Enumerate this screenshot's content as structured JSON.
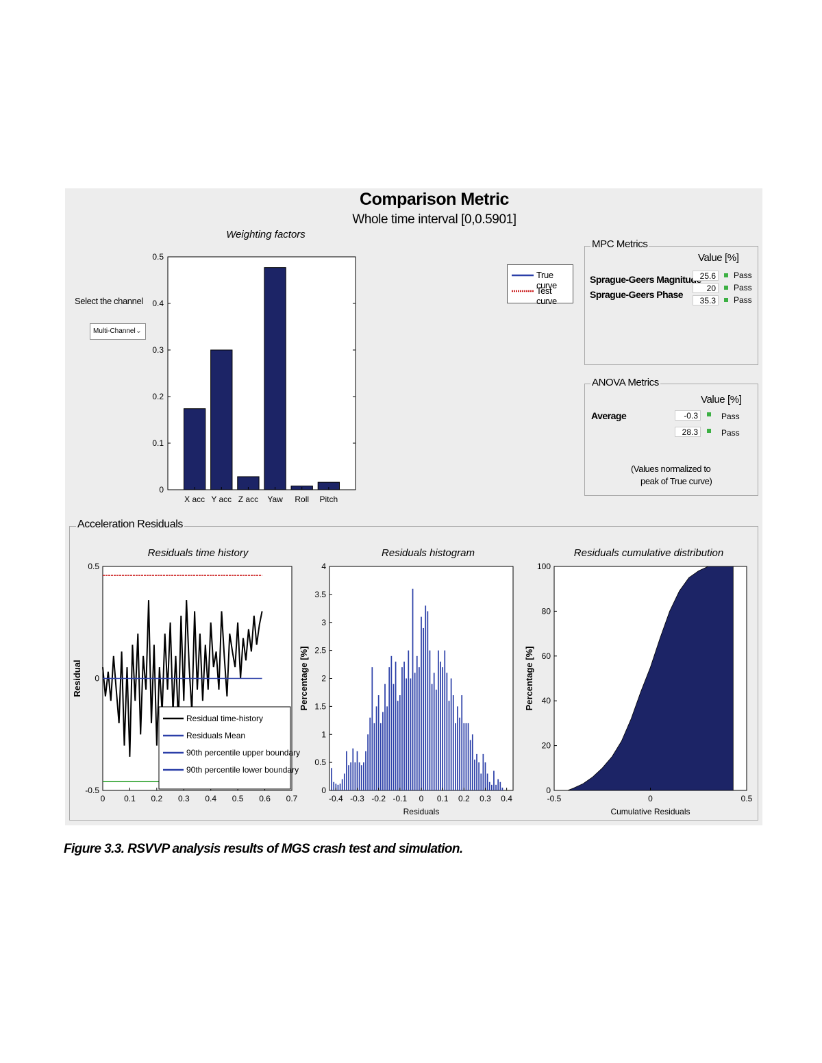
{
  "header": {
    "title": "Comparison Metric",
    "subtitle": "Whole time interval [0,0.5901]"
  },
  "channel": {
    "label": "Select the channel",
    "selected": "Multi-Channel"
  },
  "legend": {
    "true_curve": "True curve",
    "test_curve": "Test curve"
  },
  "mpc": {
    "title": "MPC Metrics",
    "value_header": "Value [%]",
    "rows": [
      {
        "label": "Sprague-Geers Magnitude",
        "value": "25.6",
        "status": "Pass"
      },
      {
        "label": "Sprague-Geers Phase",
        "value": "20",
        "status": "Pass"
      },
      {
        "label": "",
        "value": "35.3",
        "status": "Pass"
      }
    ]
  },
  "anova": {
    "title": "ANOVA Metrics",
    "value_header": "Value [%]",
    "rows": [
      {
        "label": "Average",
        "value": "-0.3",
        "status": "Pass"
      },
      {
        "label": "",
        "value": "28.3",
        "status": "Pass"
      }
    ],
    "note_line1": "(Values normalized to",
    "note_line2": "peak of True curve)"
  },
  "residuals_panel": {
    "title": "Acceleration Residuals"
  },
  "caption": "Figure 3.3.    RSVVP analysis results of MGS crash test and simulation.",
  "colors": {
    "bar": "#1c2466",
    "mean_line": "#2b3fa8",
    "test_curve": "#cc2222",
    "lower_boundary": "#2ca02c",
    "pass": "#3cb043"
  },
  "chart_data": [
    {
      "type": "bar",
      "title": "Weighting factors",
      "categories": [
        "X acc",
        "Y acc",
        "Z acc",
        "Yaw",
        "Roll",
        "Pitch"
      ],
      "values": [
        0.174,
        0.3,
        0.028,
        0.477,
        0.008,
        0.016
      ],
      "ylim": [
        0,
        0.5
      ],
      "yticks": [
        "0",
        "0.1",
        "0.2",
        "0.3",
        "0.4",
        "0.5"
      ],
      "grid": false
    },
    {
      "type": "line",
      "title": "Residuals time history",
      "ylabel": "Residual",
      "xlim": [
        0,
        0.7
      ],
      "ylim": [
        -0.5,
        0.5
      ],
      "xticks": [
        "0",
        "0.1",
        "0.2",
        "0.3",
        "0.4",
        "0.5",
        "0.6",
        "0.7"
      ],
      "yticks": [
        "-0.5",
        "0",
        "0.5"
      ],
      "legend": "bottom-right",
      "series": [
        {
          "name": "Residual time-history",
          "color": "#000000",
          "x": [
            0,
            0.01,
            0.02,
            0.03,
            0.04,
            0.05,
            0.06,
            0.07,
            0.08,
            0.09,
            0.1,
            0.11,
            0.12,
            0.13,
            0.14,
            0.15,
            0.16,
            0.17,
            0.18,
            0.19,
            0.2,
            0.21,
            0.22,
            0.23,
            0.24,
            0.25,
            0.26,
            0.27,
            0.28,
            0.29,
            0.3,
            0.31,
            0.32,
            0.33,
            0.34,
            0.35,
            0.36,
            0.37,
            0.38,
            0.39,
            0.4,
            0.41,
            0.42,
            0.43,
            0.44,
            0.45,
            0.46,
            0.47,
            0.48,
            0.49,
            0.5,
            0.51,
            0.52,
            0.53,
            0.54,
            0.55,
            0.56,
            0.57,
            0.58,
            0.59
          ],
          "y": [
            0.05,
            -0.08,
            0.03,
            -0.1,
            0.1,
            -0.05,
            -0.2,
            0.12,
            -0.3,
            0.05,
            -0.35,
            0.15,
            -0.1,
            0.2,
            -0.25,
            0.1,
            -0.05,
            0.35,
            -0.2,
            0.15,
            -0.3,
            0.05,
            -0.15,
            0.2,
            -0.05,
            0.25,
            -0.15,
            0.1,
            -0.2,
            0.28,
            -0.1,
            0.35,
            0.05,
            -0.15,
            0.3,
            -0.05,
            0.2,
            -0.1,
            0.15,
            -0.05,
            0.25,
            0.05,
            0.12,
            -0.05,
            0.3,
            0.1,
            -0.08,
            0.2,
            0.12,
            0.05,
            0.25,
            0.0,
            0.18,
            0.08,
            0.22,
            0.12,
            0.28,
            0.15,
            0.24,
            0.3
          ]
        },
        {
          "name": "Residuals Mean",
          "color": "#2b3fa8",
          "x": [
            0,
            0.59
          ],
          "y": [
            0,
            0
          ]
        },
        {
          "name": "90th percentile upper boundary",
          "color": "#cc2222",
          "x": [
            0,
            0.59
          ],
          "y": [
            0.46,
            0.46
          ]
        },
        {
          "name": "90th percentile lower boundary",
          "color": "#2ca02c",
          "x": [
            0,
            0.59
          ],
          "y": [
            -0.46,
            -0.46
          ]
        }
      ]
    },
    {
      "type": "bar",
      "title": "Residuals histogram",
      "xlabel": "Residuals",
      "ylabel": "Percentage [%]",
      "xlim": [
        -0.43,
        0.43
      ],
      "ylim": [
        0,
        4
      ],
      "xticks": [
        "-0.4",
        "-0.3",
        "-0.2",
        "-0.1",
        "0",
        "0.1",
        "0.2",
        "0.3",
        "0.4"
      ],
      "yticks": [
        "0",
        "0.5",
        "1",
        "1.5",
        "2",
        "2.5",
        "3",
        "3.5",
        "4"
      ],
      "bin_centers": [
        -0.42,
        -0.41,
        -0.4,
        -0.39,
        -0.38,
        -0.37,
        -0.36,
        -0.35,
        -0.34,
        -0.33,
        -0.32,
        -0.31,
        -0.3,
        -0.29,
        -0.28,
        -0.27,
        -0.26,
        -0.25,
        -0.24,
        -0.23,
        -0.22,
        -0.21,
        -0.2,
        -0.19,
        -0.18,
        -0.17,
        -0.16,
        -0.15,
        -0.14,
        -0.13,
        -0.12,
        -0.11,
        -0.1,
        -0.09,
        -0.08,
        -0.07,
        -0.06,
        -0.05,
        -0.04,
        -0.03,
        -0.02,
        -0.01,
        0.0,
        0.01,
        0.02,
        0.03,
        0.04,
        0.05,
        0.06,
        0.07,
        0.08,
        0.09,
        0.1,
        0.11,
        0.12,
        0.13,
        0.14,
        0.15,
        0.16,
        0.17,
        0.18,
        0.19,
        0.2,
        0.21,
        0.22,
        0.23,
        0.24,
        0.25,
        0.26,
        0.27,
        0.28,
        0.29,
        0.3,
        0.31,
        0.32,
        0.33,
        0.34,
        0.35,
        0.36,
        0.37,
        0.38
      ],
      "values": [
        0.4,
        0.15,
        0.12,
        0.1,
        0.12,
        0.2,
        0.3,
        0.7,
        0.45,
        0.5,
        0.75,
        0.5,
        0.7,
        0.5,
        0.45,
        0.5,
        0.7,
        1.0,
        1.3,
        2.2,
        1.2,
        1.5,
        1.7,
        1.2,
        1.4,
        1.9,
        1.5,
        2.2,
        2.4,
        1.9,
        2.3,
        1.6,
        1.7,
        2.2,
        2.3,
        2.0,
        2.5,
        2.0,
        3.6,
        2.1,
        2.4,
        2.2,
        3.1,
        2.9,
        3.3,
        3.2,
        2.5,
        1.9,
        2.1,
        1.8,
        2.5,
        2.3,
        2.2,
        2.5,
        2.1,
        1.6,
        2.0,
        1.7,
        1.2,
        1.5,
        1.3,
        1.7,
        1.2,
        1.2,
        1.2,
        0.9,
        1.0,
        0.55,
        0.65,
        0.5,
        0.3,
        0.65,
        0.5,
        0.3,
        0.15,
        0.1,
        0.35,
        0.1,
        0.2,
        0.15,
        0.05
      ]
    },
    {
      "type": "area",
      "title": "Residuals cumulative distribution",
      "xlabel": "Cumulative Residuals",
      "ylabel": "Percentage [%]",
      "xlim": [
        -0.5,
        0.5
      ],
      "ylim": [
        0,
        100
      ],
      "xticks": [
        "-0.5",
        "0",
        "0.5"
      ],
      "yticks": [
        "0",
        "20",
        "40",
        "60",
        "80",
        "100"
      ],
      "x": [
        -0.43,
        -0.4,
        -0.35,
        -0.3,
        -0.25,
        -0.2,
        -0.15,
        -0.1,
        -0.05,
        0.0,
        0.05,
        0.1,
        0.15,
        0.2,
        0.25,
        0.3,
        0.35,
        0.4,
        0.43
      ],
      "y": [
        0,
        1,
        3,
        6,
        10,
        15,
        22,
        32,
        44,
        55,
        68,
        80,
        89,
        95,
        98,
        100,
        100,
        100,
        100
      ]
    }
  ]
}
